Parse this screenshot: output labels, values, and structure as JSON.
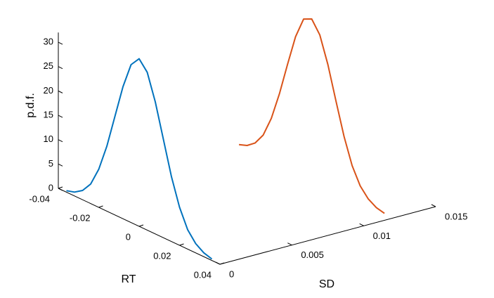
{
  "chart_data": {
    "type": "line3d",
    "xlabel": "RT",
    "ylabel": "SD",
    "zlabel": "p.d.f.",
    "xlim": [
      -0.04,
      0.04
    ],
    "ylim": [
      0,
      0.015
    ],
    "zlim": [
      0,
      32
    ],
    "xticks": [
      -0.04,
      -0.02,
      0,
      0.02,
      0.04
    ],
    "yticks": [
      0,
      0.005,
      0.01,
      0.015
    ],
    "zticks": [
      0,
      5,
      10,
      15,
      20,
      25,
      30
    ],
    "series": [
      {
        "color": "#0072BD",
        "y": 0,
        "x": [
          -0.036,
          -0.032,
          -0.028,
          -0.024,
          -0.02,
          -0.016,
          -0.012,
          -0.008,
          -0.004,
          0,
          0.004,
          0.008,
          0.012,
          0.016,
          0.02,
          0.024,
          0.028,
          0.032,
          0.036
        ],
        "values": [
          0.3,
          0.8,
          1.9,
          4.0,
          7.8,
          13.3,
          20.2,
          27.1,
          32.4,
          34.4,
          32.4,
          27.1,
          20.2,
          13.3,
          7.8,
          4.0,
          1.9,
          0.8,
          0.3
        ]
      },
      {
        "color": "#D95319",
        "y": 0.012,
        "x": [
          -0.036,
          -0.032,
          -0.028,
          -0.024,
          -0.02,
          -0.016,
          -0.012,
          -0.008,
          -0.004,
          0,
          0.004,
          0.008,
          0.012,
          0.016,
          0.02,
          0.024,
          0.028,
          0.032,
          0.036
        ],
        "values": [
          0.3,
          0.9,
          2.2,
          4.6,
          8.8,
          14.6,
          21.4,
          27.9,
          32.3,
          33.1,
          30.6,
          25.3,
          18.6,
          12.1,
          6.9,
          3.5,
          1.6,
          0.6,
          0.2
        ]
      }
    ]
  }
}
